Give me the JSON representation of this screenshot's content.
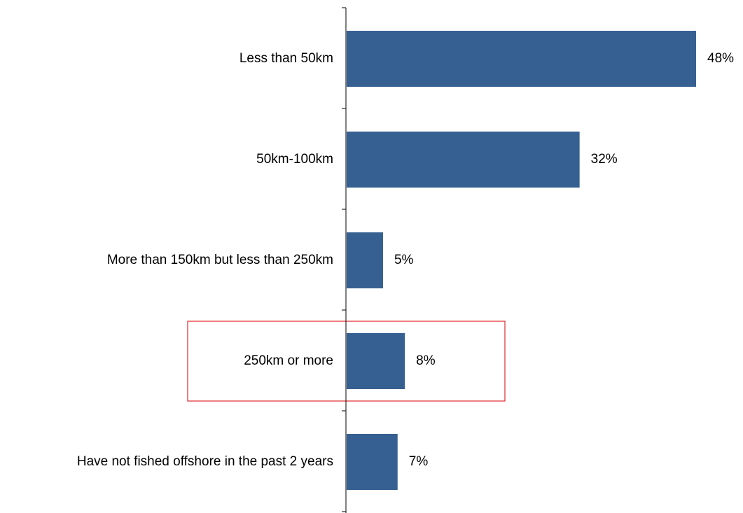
{
  "chart_data": {
    "type": "bar",
    "orientation": "horizontal",
    "categories": [
      "Less than 50km",
      "50km-100km",
      "More than 150km but less than 250km",
      "250km or more",
      "Have not fished offshore in the past 2 years"
    ],
    "values": [
      48,
      32,
      5,
      8,
      7
    ],
    "value_labels": [
      "48%",
      "32%",
      "5%",
      "8%",
      "7%"
    ],
    "value_unit": "%",
    "title": "",
    "xlabel": "",
    "ylabel": "",
    "xlim": [
      0,
      48
    ],
    "grid": false,
    "legend": "none",
    "highlighted_category": "250km or more",
    "colors": {
      "bar": "#376092",
      "highlight_box": "#e0282e",
      "axis": "#000000",
      "text": "#000000"
    }
  }
}
